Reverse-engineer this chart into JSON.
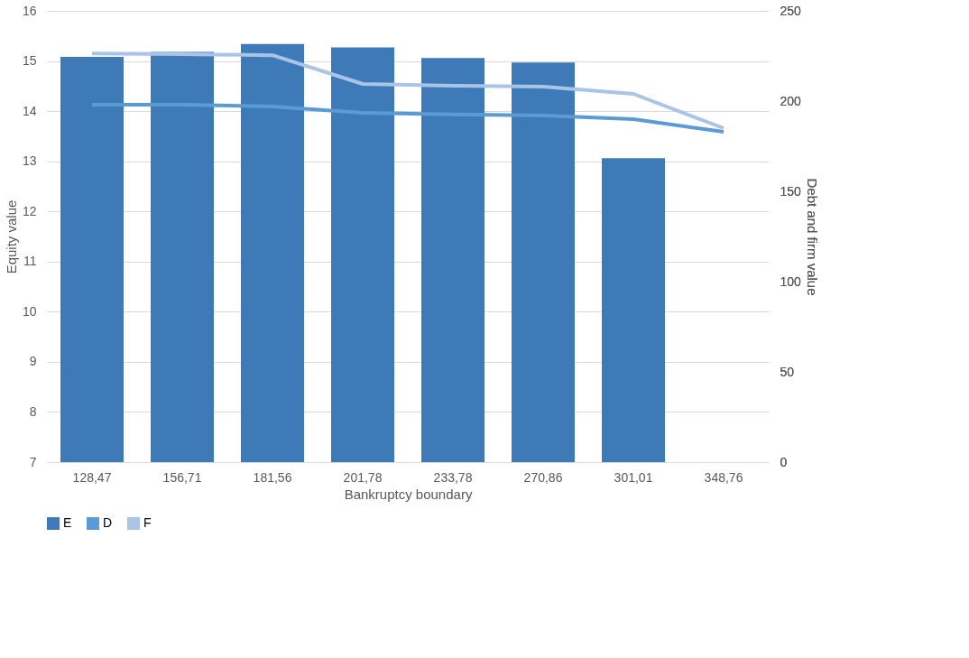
{
  "chart_data": {
    "type": "bar",
    "xlabel": "Bankruptcy boundary",
    "ylabel": "Equity value",
    "y2label": "Debt and firm value",
    "categories": [
      "128,47",
      "156,71",
      "181,56",
      "201,78",
      "233,78",
      "270,86",
      "301,01",
      "348,76"
    ],
    "series": [
      {
        "name": "E",
        "color": "#3f7ab8",
        "values": [
          15.08,
          15.18,
          15.34,
          15.27,
          15.06,
          14.97,
          13.06,
          7
        ]
      },
      {
        "name": "D",
        "type": "line",
        "axis": "y2",
        "color": "#5b9bd5",
        "values": [
          198,
          198,
          197,
          193.5,
          192.6,
          192,
          190,
          183
        ]
      },
      {
        "name": "F",
        "type": "line",
        "axis": "y2",
        "color": "#a9c4e6",
        "values": [
          226.4,
          226,
          225.4,
          209.5,
          208.5,
          208,
          204,
          185
        ]
      }
    ],
    "ylim": [
      7,
      16
    ],
    "yticks": [
      7,
      8,
      9,
      10,
      11,
      12,
      13,
      14,
      15,
      16
    ],
    "y2lim": [
      0,
      250
    ],
    "y2ticks": [
      0,
      50,
      100,
      150,
      200,
      250
    ],
    "grid": "y",
    "legend": "bottom"
  }
}
